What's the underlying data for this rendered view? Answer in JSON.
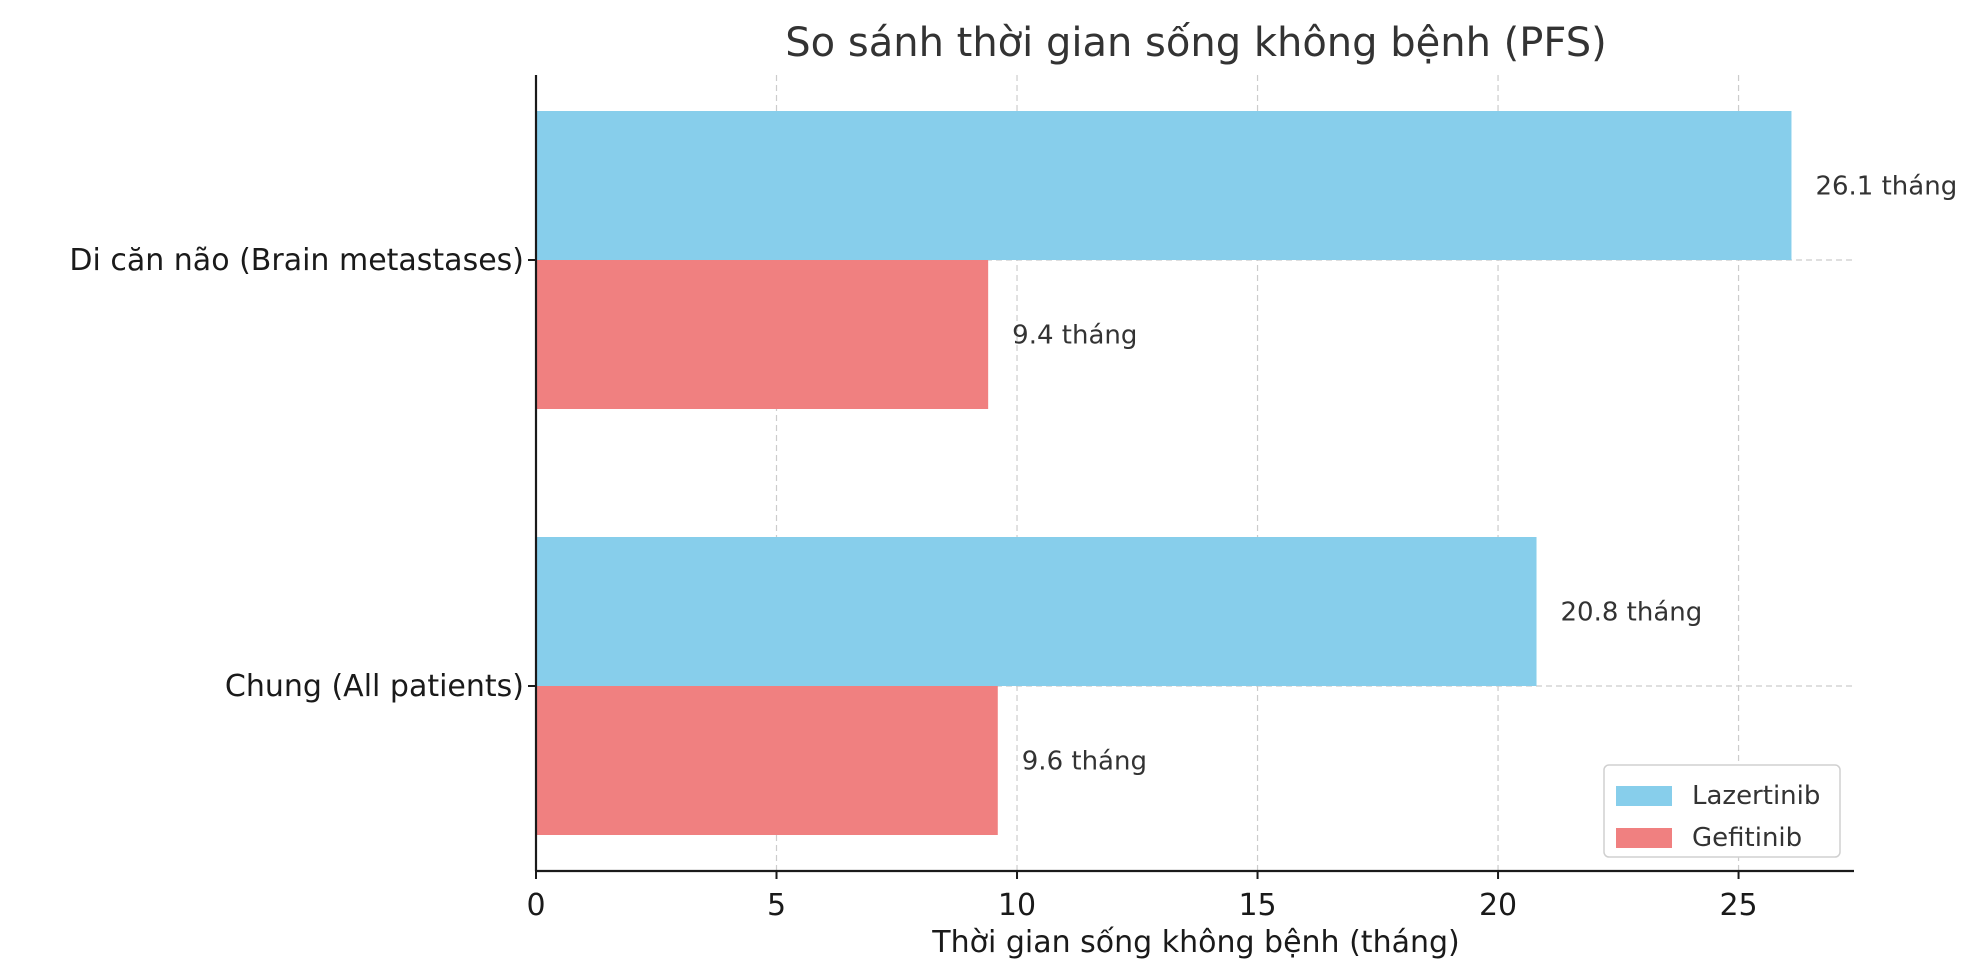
{
  "chart_data": {
    "type": "bar",
    "orientation": "horizontal",
    "title": "So sánh thời gian sống không bệnh (PFS)",
    "xlabel": "Thời gian sống không bệnh (tháng)",
    "ylabel": "",
    "categories": [
      "Chung (All patients)",
      "Di căn não (Brain metastases)"
    ],
    "series": [
      {
        "name": "Lazertinib",
        "color": "#87CEEB",
        "values": [
          20.8,
          26.1
        ],
        "labels": [
          "20.8 tháng",
          "26.1 tháng"
        ]
      },
      {
        "name": "Gefitinib",
        "color": "#F08080",
        "values": [
          9.6,
          9.4
        ],
        "labels": [
          "9.6 tháng",
          "9.4 tháng"
        ]
      }
    ],
    "xlim": [
      0,
      27.4
    ],
    "xticks": [
      0,
      5,
      10,
      15,
      20,
      25
    ],
    "grid": "x-dashed",
    "legend": "lower-right"
  }
}
